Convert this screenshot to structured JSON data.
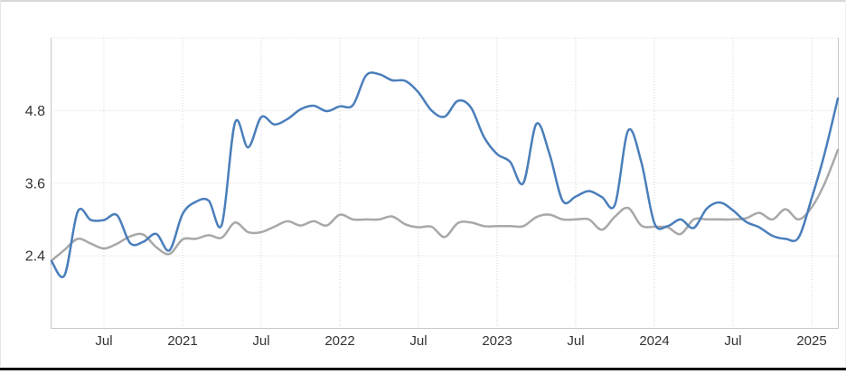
{
  "chart": {
    "background": "#ffffff",
    "top_border_color": "#d8d8d8",
    "bottom_bar_color": "#0c0c0c",
    "grid_color": "#d6d6d6",
    "axis_color": "#c9c9c9",
    "label_color": "#333333"
  },
  "chart_data": {
    "type": "line",
    "title": "",
    "xlabel": "",
    "ylabel": "",
    "legend": "none",
    "grid": true,
    "ylim": [
      1.2,
      6.0
    ],
    "y_ticks": [
      2.4,
      3.6,
      4.8
    ],
    "x": [
      "2020-03",
      "2020-04",
      "2020-05",
      "2020-06",
      "2020-07",
      "2020-08",
      "2020-09",
      "2020-10",
      "2020-11",
      "2020-12",
      "2021-01",
      "2021-02",
      "2021-03",
      "2021-04",
      "2021-05",
      "2021-06",
      "2021-07",
      "2021-08",
      "2021-09",
      "2021-10",
      "2021-11",
      "2021-12",
      "2022-01",
      "2022-02",
      "2022-03",
      "2022-04",
      "2022-05",
      "2022-06",
      "2022-07",
      "2022-08",
      "2022-09",
      "2022-10",
      "2022-11",
      "2022-12",
      "2023-01",
      "2023-02",
      "2023-03",
      "2023-04",
      "2023-05",
      "2023-06",
      "2023-07",
      "2023-08",
      "2023-09",
      "2023-10",
      "2023-11",
      "2023-12",
      "2024-01",
      "2024-02",
      "2024-03",
      "2024-04",
      "2024-05",
      "2024-06",
      "2024-07",
      "2024-08",
      "2024-09",
      "2024-10",
      "2024-11",
      "2024-12",
      "2025-01",
      "2025-02",
      "2025-03"
    ],
    "x_ticks": [
      {
        "i": 4,
        "label": "Jul"
      },
      {
        "i": 10,
        "label": "2021"
      },
      {
        "i": 16,
        "label": "Jul"
      },
      {
        "i": 22,
        "label": "2022"
      },
      {
        "i": 28,
        "label": "Jul"
      },
      {
        "i": 34,
        "label": "2023"
      },
      {
        "i": 40,
        "label": "Jul"
      },
      {
        "i": 46,
        "label": "2024"
      },
      {
        "i": 52,
        "label": "Jul"
      },
      {
        "i": 58,
        "label": "2025"
      }
    ],
    "series": [
      {
        "name": "series-blue",
        "color": "#4a7ebb",
        "width": 2.5,
        "values": [
          2.31,
          2.08,
          3.13,
          2.99,
          2.99,
          3.07,
          2.61,
          2.63,
          2.76,
          2.49,
          3.09,
          3.29,
          3.31,
          2.92,
          4.6,
          4.19,
          4.69,
          4.57,
          4.66,
          4.82,
          4.88,
          4.79,
          4.87,
          4.89,
          5.38,
          5.4,
          5.3,
          5.29,
          5.1,
          4.8,
          4.7,
          4.96,
          4.85,
          4.36,
          4.08,
          3.95,
          3.6,
          4.58,
          4.08,
          3.31,
          3.38,
          3.47,
          3.37,
          3.25,
          4.47,
          3.95,
          2.94,
          2.89,
          3.0,
          2.86,
          3.18,
          3.28,
          3.15,
          2.96,
          2.87,
          2.73,
          2.68,
          2.7,
          3.35,
          4.1,
          5.0
        ]
      },
      {
        "name": "series-gray",
        "color": "#a8a8a8",
        "width": 2.5,
        "values": [
          2.32,
          2.5,
          2.68,
          2.6,
          2.52,
          2.6,
          2.72,
          2.75,
          2.54,
          2.43,
          2.67,
          2.68,
          2.74,
          2.7,
          2.95,
          2.79,
          2.79,
          2.88,
          2.97,
          2.9,
          2.97,
          2.9,
          3.08,
          3.0,
          3.0,
          3.0,
          3.05,
          2.92,
          2.87,
          2.88,
          2.71,
          2.94,
          2.95,
          2.89,
          2.89,
          2.89,
          2.89,
          3.04,
          3.08,
          3.0,
          3.0,
          3.0,
          2.83,
          3.05,
          3.19,
          2.9,
          2.88,
          2.87,
          2.76,
          3.0,
          3.0,
          3.0,
          3.0,
          3.02,
          3.11,
          3.0,
          3.17,
          3.0,
          3.2,
          3.6,
          4.15
        ]
      }
    ]
  }
}
